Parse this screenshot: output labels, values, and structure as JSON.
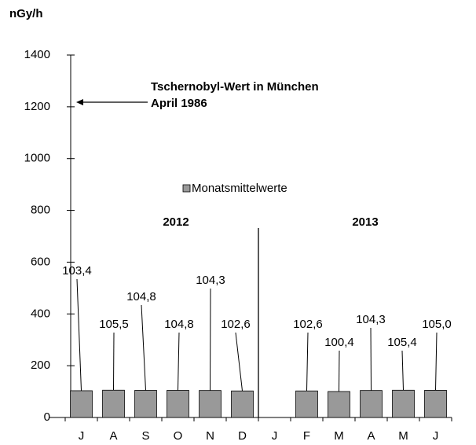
{
  "chart_data": {
    "type": "bar",
    "y_label": "nGy/h",
    "annotation": [
      "Tschernobyl-Wert in München",
      "April 1986"
    ],
    "legend": "Monatsmittelwerte",
    "year_labels": [
      "2012",
      "2013"
    ],
    "categories": [
      "J",
      "A",
      "S",
      "O",
      "N",
      "D",
      "J",
      "F",
      "M",
      "A",
      "M",
      "J"
    ],
    "values": [
      103.4,
      105.5,
      104.8,
      104.8,
      104.3,
      102.6,
      null,
      102.6,
      100.4,
      104.3,
      105.4,
      105.0
    ],
    "value_labels": [
      "103,4",
      "105,5",
      "104,8",
      "104,8",
      "104,3",
      "102,6",
      null,
      "102,6",
      "100,4",
      "104,3",
      "105,4",
      "105,0"
    ],
    "color": "#999999",
    "ylim": [
      0,
      1400
    ],
    "yticks": [
      0,
      200,
      400,
      600,
      800,
      1000,
      1200,
      1400
    ],
    "grid": false
  }
}
